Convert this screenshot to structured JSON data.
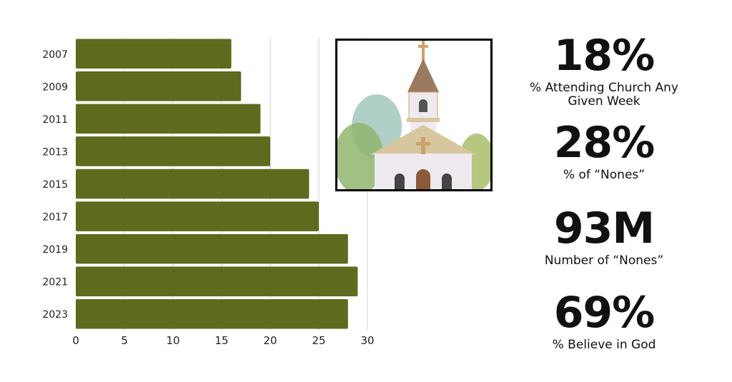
{
  "chart_data": {
    "type": "bar",
    "orientation": "horizontal",
    "categories": [
      "2007",
      "2009",
      "2011",
      "2013",
      "2015",
      "2017",
      "2019",
      "2021",
      "2023"
    ],
    "values": [
      16,
      17,
      19,
      20,
      24,
      25,
      28,
      29,
      28
    ],
    "xlim": [
      0,
      30
    ],
    "xticks": [
      0,
      5,
      10,
      15,
      20,
      25,
      30
    ],
    "grid": true,
    "bar_color": "#5f6a1e",
    "title": "",
    "xlabel": "",
    "ylabel": ""
  },
  "stats": [
    {
      "value": "18%",
      "label": "% Attending Church Any Given Week"
    },
    {
      "value": "28%",
      "label": "% of “Nones”"
    },
    {
      "value": "93M",
      "label": "Number of “Nones”"
    },
    {
      "value": "69%",
      "label": "% Believe in God"
    }
  ]
}
